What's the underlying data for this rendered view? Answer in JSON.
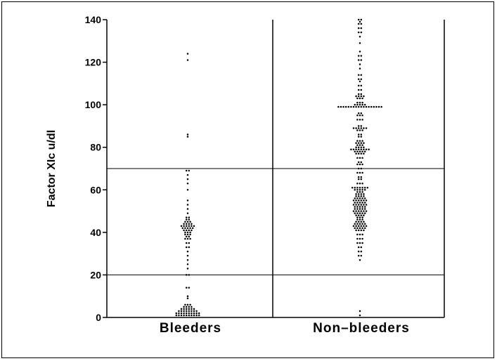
{
  "chart_data": {
    "type": "scatter",
    "style": "dot-plot",
    "ylabel": "Factor XIc u/dl",
    "ylim": [
      0,
      140
    ],
    "y_ticks": [
      0,
      20,
      40,
      60,
      80,
      100,
      120,
      140
    ],
    "categories": [
      "Bleeders",
      "Non–bleeders"
    ],
    "reference_lines": [
      20,
      70
    ],
    "grid": false,
    "legend": "none",
    "colors": {
      "ink": "#000000",
      "background": "#ffffff"
    },
    "series": [
      {
        "category": "Bleeders",
        "points": [
          [
            1,
            10
          ],
          [
            2,
            10
          ],
          [
            3,
            8
          ],
          [
            4,
            6
          ],
          [
            5,
            4
          ],
          [
            6,
            3
          ],
          [
            9,
            1
          ],
          [
            10,
            1
          ],
          [
            14,
            2
          ],
          [
            20,
            2
          ],
          [
            23,
            1
          ],
          [
            25,
            1
          ],
          [
            27,
            1
          ],
          [
            29,
            1
          ],
          [
            31,
            1
          ],
          [
            33,
            2
          ],
          [
            35,
            2
          ],
          [
            37,
            3
          ],
          [
            38,
            2
          ],
          [
            39,
            3
          ],
          [
            40,
            3
          ],
          [
            41,
            4
          ],
          [
            42,
            5
          ],
          [
            43,
            6
          ],
          [
            44,
            4
          ],
          [
            45,
            3
          ],
          [
            46,
            2
          ],
          [
            47,
            2
          ],
          [
            49,
            1
          ],
          [
            51,
            1
          ],
          [
            53,
            1
          ],
          [
            55,
            1
          ],
          [
            60,
            1
          ],
          [
            63,
            1
          ],
          [
            65,
            1
          ],
          [
            67,
            1
          ],
          [
            69,
            2
          ],
          [
            85,
            1
          ],
          [
            86,
            1
          ],
          [
            121,
            1
          ],
          [
            124,
            1
          ]
        ]
      },
      {
        "category": "Non–bleeders",
        "points": [
          [
            1,
            1
          ],
          [
            3,
            1
          ],
          [
            27,
            1
          ],
          [
            29,
            2
          ],
          [
            31,
            2
          ],
          [
            33,
            2
          ],
          [
            35,
            3
          ],
          [
            37,
            3
          ],
          [
            39,
            3
          ],
          [
            41,
            4
          ],
          [
            42,
            5
          ],
          [
            43,
            6
          ],
          [
            44,
            5
          ],
          [
            45,
            4
          ],
          [
            46,
            3
          ],
          [
            47,
            3
          ],
          [
            48,
            4
          ],
          [
            49,
            5
          ],
          [
            50,
            6
          ],
          [
            51,
            5
          ],
          [
            52,
            5
          ],
          [
            53,
            6
          ],
          [
            54,
            5
          ],
          [
            55,
            6
          ],
          [
            56,
            5
          ],
          [
            57,
            4
          ],
          [
            58,
            4
          ],
          [
            59,
            3
          ],
          [
            60,
            5
          ],
          [
            61,
            7
          ],
          [
            63,
            3
          ],
          [
            65,
            2
          ],
          [
            66,
            2
          ],
          [
            68,
            3
          ],
          [
            70,
            2
          ],
          [
            72,
            3
          ],
          [
            73,
            2
          ],
          [
            75,
            3
          ],
          [
            77,
            4
          ],
          [
            78,
            5
          ],
          [
            79,
            8
          ],
          [
            80,
            4
          ],
          [
            81,
            3
          ],
          [
            82,
            4
          ],
          [
            83,
            3
          ],
          [
            85,
            2
          ],
          [
            86,
            2
          ],
          [
            88,
            3
          ],
          [
            89,
            6
          ],
          [
            90,
            2
          ],
          [
            93,
            3
          ],
          [
            95,
            3
          ],
          [
            96,
            2
          ],
          [
            99,
            18
          ],
          [
            100,
            5
          ],
          [
            101,
            3
          ],
          [
            103,
            3
          ],
          [
            104,
            4
          ],
          [
            105,
            2
          ],
          [
            107,
            2
          ],
          [
            109,
            2
          ],
          [
            111,
            1
          ],
          [
            112,
            2
          ],
          [
            114,
            2
          ],
          [
            117,
            1
          ],
          [
            119,
            1
          ],
          [
            121,
            2
          ],
          [
            123,
            2
          ],
          [
            125,
            1
          ],
          [
            129,
            1
          ],
          [
            132,
            1
          ],
          [
            134,
            2
          ],
          [
            136,
            2
          ],
          [
            138,
            2
          ],
          [
            139,
            1
          ],
          [
            140,
            2
          ]
        ]
      }
    ]
  }
}
